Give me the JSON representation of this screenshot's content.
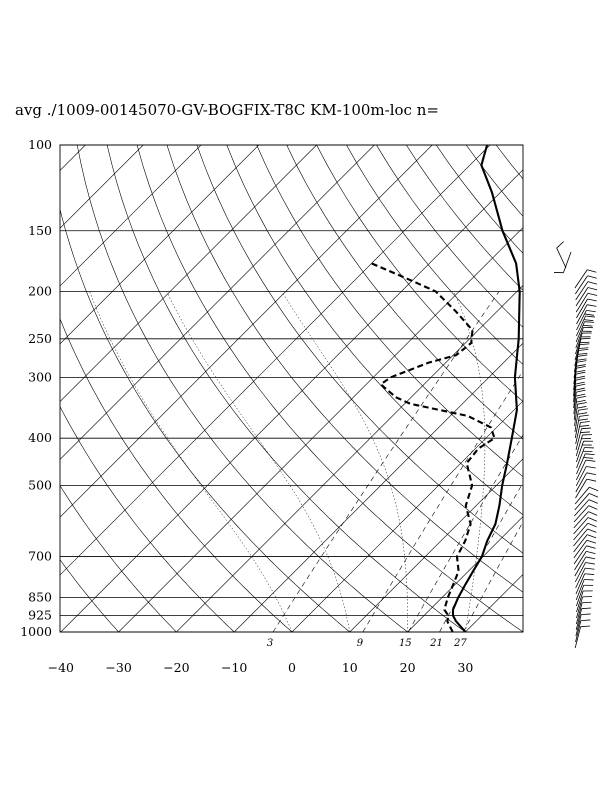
{
  "chart_data": {
    "type": "line",
    "title": "avg ./1009-00145070-GV-BOGFIX-T8C KM-100m-loc n=",
    "xlabel": "",
    "ylabel": "",
    "x_ticks": [
      -40,
      -30,
      -20,
      -10,
      0,
      10,
      20,
      30
    ],
    "x_tick_labels": [
      "−40",
      "−30",
      "−20",
      "−10",
      "0",
      "10",
      "20",
      "30"
    ],
    "xlim": [
      -40,
      40
    ],
    "y_scale": "log-pressure",
    "ylim": [
      1000,
      100
    ],
    "pressure_levels": [
      100,
      150,
      200,
      250,
      300,
      400,
      500,
      700,
      850,
      925,
      1000
    ],
    "pressure_labels": [
      "100",
      "150",
      "200",
      "250",
      "300",
      "400",
      "500",
      "700",
      "850",
      "925",
      "1000"
    ],
    "mixing_ratio_labels": [
      "3",
      "9",
      "15",
      "21",
      "27"
    ],
    "grid": true,
    "legend": "none",
    "series": [
      {
        "line_style": "solid",
        "points": [
          [
            1000,
            30.0
          ],
          [
            950,
            26.5
          ],
          [
            925,
            25.0
          ],
          [
            900,
            24.0
          ],
          [
            850,
            22.8
          ],
          [
            800,
            21.8
          ],
          [
            750,
            20.8
          ],
          [
            700,
            19.8
          ],
          [
            650,
            18.0
          ],
          [
            600,
            16.5
          ],
          [
            550,
            14.0
          ],
          [
            500,
            11.0
          ],
          [
            450,
            8.0
          ],
          [
            400,
            4.5
          ],
          [
            350,
            0.5
          ],
          [
            300,
            -5.5
          ],
          [
            250,
            -11.5
          ],
          [
            200,
            -19.5
          ],
          [
            175,
            -25.0
          ],
          [
            150,
            -33.0
          ],
          [
            125,
            -41.5
          ],
          [
            110,
            -48.0
          ],
          [
            100,
            -50.5
          ]
        ]
      },
      {
        "line_style": "dashed",
        "points": [
          [
            1000,
            27.8
          ],
          [
            950,
            25.0
          ],
          [
            925,
            24.2
          ],
          [
            900,
            22.5
          ],
          [
            850,
            21.0
          ],
          [
            800,
            19.7
          ],
          [
            750,
            18.3
          ],
          [
            700,
            15.5
          ],
          [
            650,
            14.2
          ],
          [
            600,
            12.2
          ],
          [
            550,
            8.2
          ],
          [
            500,
            5.8
          ],
          [
            450,
            1.0
          ],
          [
            420,
            0.5
          ],
          [
            400,
            1.5
          ],
          [
            380,
            -1.0
          ],
          [
            360,
            -7.0
          ],
          [
            340,
            -19.0
          ],
          [
            330,
            -22.5
          ],
          [
            320,
            -25.0
          ],
          [
            310,
            -27.5
          ],
          [
            300,
            -27.0
          ],
          [
            280,
            -23.0
          ],
          [
            270,
            -19.5
          ],
          [
            255,
            -19.0
          ],
          [
            240,
            -21.0
          ],
          [
            220,
            -27.0
          ],
          [
            200,
            -34.0
          ],
          [
            190,
            -40.0
          ],
          [
            175,
            -50.0
          ]
        ]
      }
    ],
    "colors": {
      "lines": "#000000",
      "background": "#ffffff"
    }
  }
}
